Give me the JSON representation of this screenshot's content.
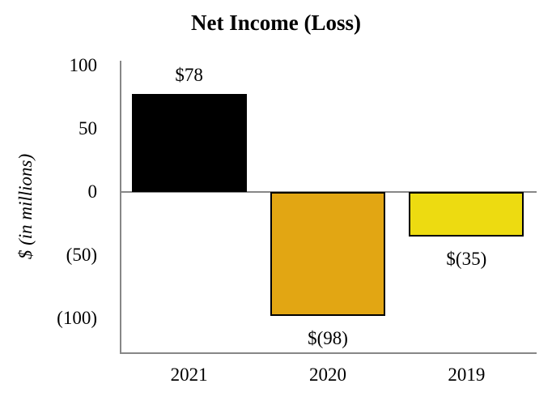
{
  "chart_data": {
    "type": "bar",
    "title": "Net Income (Loss)",
    "ylabel": "$ (in millions)",
    "xlabel": "",
    "categories": [
      "2021",
      "2020",
      "2019"
    ],
    "values": [
      78,
      -98,
      -35
    ],
    "value_labels": [
      "$78",
      "$(98)",
      "$(35)"
    ],
    "bar_colors": [
      "#000000",
      "#E2A613",
      "#EDDB11"
    ],
    "bar_border_color": "#000000",
    "yticks": [
      {
        "value": 100,
        "label": "100"
      },
      {
        "value": 50,
        "label": "50"
      },
      {
        "value": 0,
        "label": "0"
      },
      {
        "value": -50,
        "label": "(50)"
      },
      {
        "value": -100,
        "label": "(100)"
      }
    ],
    "ylim": [
      -128,
      104
    ],
    "grid": false,
    "legend": "none",
    "axis_color": "#878787"
  }
}
